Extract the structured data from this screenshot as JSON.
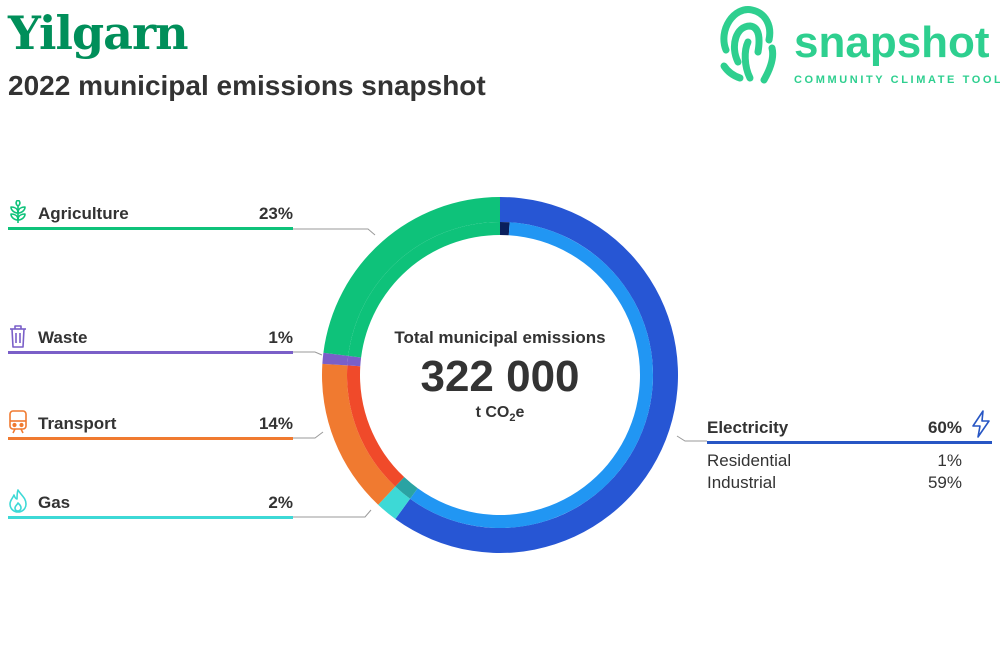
{
  "header": {
    "title": "Yilgarn",
    "subtitle": "2022 municipal emissions snapshot"
  },
  "logo": {
    "word": "snapshot",
    "tagline": "COMMUNITY CLIMATE TOOL",
    "icon": "fingerprint-icon",
    "color": "#2ecf8f"
  },
  "chart_data": {
    "type": "pie",
    "title": "Total municipal emissions",
    "total": {
      "value_label": "322 000",
      "unit_prefix": "t CO",
      "unit_sub": "2",
      "unit_suffix": "e"
    },
    "categories": [
      {
        "name": "Electricity",
        "pct_label": "60%",
        "value": 60,
        "color": "#2756d4",
        "inner_color": "#2196f3",
        "icon": "lightning-icon",
        "sub": [
          {
            "name": "Residential",
            "pct_label": "1%",
            "value": 1,
            "color": "#0a1f5c"
          },
          {
            "name": "Industrial",
            "pct_label": "59%",
            "value": 59,
            "color": "#2196f3"
          }
        ]
      },
      {
        "name": "Gas",
        "pct_label": "2%",
        "value": 2,
        "color": "#3dd9d6",
        "inner_color": "#2aa3a3",
        "icon": "flame-icon"
      },
      {
        "name": "Transport",
        "pct_label": "14%",
        "value": 14,
        "color": "#f07a30",
        "inner_color": "#f04a2a",
        "icon": "train-icon"
      },
      {
        "name": "Waste",
        "pct_label": "1%",
        "value": 1,
        "color": "#7a5fc8",
        "inner_color": "#7a5fc8",
        "icon": "bin-icon"
      },
      {
        "name": "Agriculture",
        "pct_label": "23%",
        "value": 23,
        "color": "#0ec27a",
        "inner_color": "#0ec27a",
        "icon": "plant-icon"
      }
    ]
  }
}
